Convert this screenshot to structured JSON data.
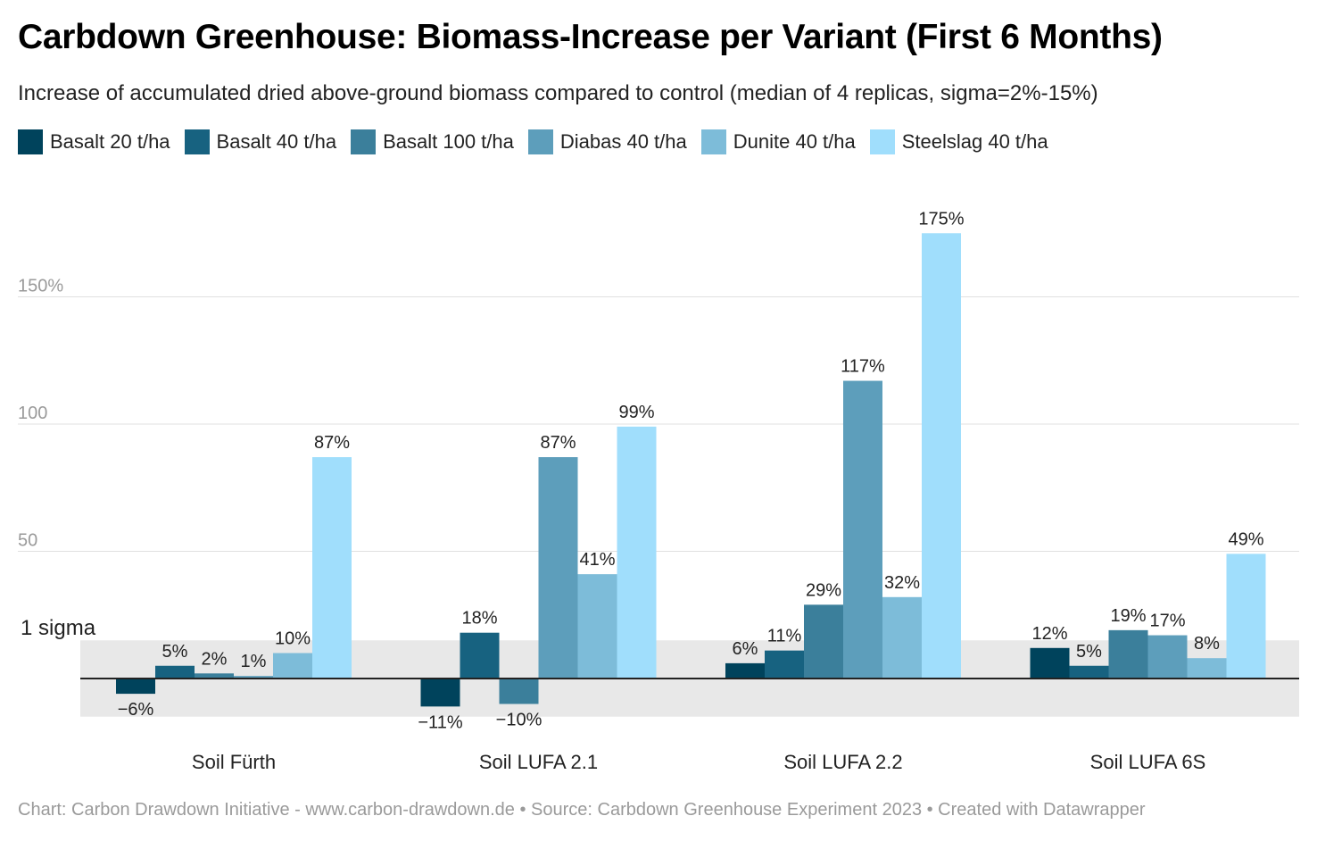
{
  "chart_data": {
    "type": "bar",
    "title": "Carbdown Greenhouse: Biomass-Increase per Variant (First 6 Months)",
    "subtitle": "Increase of accumulated dried above-ground biomass compared to control (median of 4 replicas, sigma=2%-15%)",
    "categories": [
      "Soil Fürth",
      "Soil LUFA 2.1",
      "Soil LUFA 2.2",
      "Soil LUFA 6S"
    ],
    "series": [
      {
        "name": "Basalt 20 t/ha",
        "color": "#00435c",
        "values": [
          -6,
          -11,
          6,
          12
        ],
        "labels": [
          "−6%",
          "−11%",
          "6%",
          "12%"
        ]
      },
      {
        "name": "Basalt 40 t/ha",
        "color": "#176280",
        "values": [
          5,
          18,
          11,
          5
        ],
        "labels": [
          "5%",
          "18%",
          "11%",
          "5%"
        ]
      },
      {
        "name": "Basalt 100 t/ha",
        "color": "#3b7f9b",
        "values": [
          2,
          -10,
          29,
          19
        ],
        "labels": [
          "2%",
          "−10%",
          "29%",
          "19%"
        ]
      },
      {
        "name": "Diabas 40 t/ha",
        "color": "#5d9ebb",
        "values": [
          1,
          87,
          117,
          17
        ],
        "labels": [
          "1%",
          "87%",
          "117%",
          "17%"
        ]
      },
      {
        "name": "Dunite 40 t/ha",
        "color": "#7dbcd9",
        "values": [
          10,
          41,
          32,
          8
        ],
        "labels": [
          "10%",
          "41%",
          "32%",
          "8%"
        ]
      },
      {
        "name": "Steelslag 40 t/ha",
        "color": "#a0defc",
        "values": [
          87,
          99,
          175,
          49
        ],
        "labels": [
          "87%",
          "99%",
          "175%",
          "49%"
        ]
      }
    ],
    "yticks": [
      50,
      100,
      150
    ],
    "ytick_labels": [
      "50",
      "100",
      "150%"
    ],
    "ylim": [
      -15,
      175
    ],
    "grid": true,
    "legend": "top-left",
    "annotation": {
      "label": "1 sigma",
      "range": [
        -15,
        15
      ]
    }
  },
  "footer": "Chart: Carbon Drawdown Initiative - www.carbon-drawdown.de • Source: Carbdown Greenhouse Experiment 2023 • Created with Datawrapper"
}
